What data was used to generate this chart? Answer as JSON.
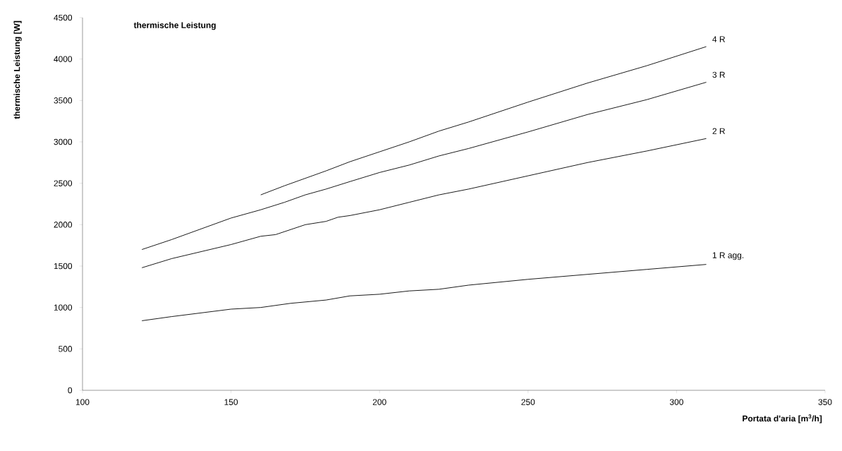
{
  "chart_data": {
    "type": "line",
    "title": "thermische Leistung",
    "xlabel": "Portata d'aria [m$^{3}$/h]",
    "ylabel": "thermische Leistung [W]",
    "xlim": [
      100,
      350
    ],
    "xticks": [
      100,
      150,
      200,
      250,
      300,
      350
    ],
    "ylim": [
      0,
      4500
    ],
    "yticks": [
      0,
      500,
      1000,
      1500,
      2000,
      2500,
      3000,
      3500,
      4000,
      4500
    ],
    "marker": "none",
    "line_style": "solid",
    "series": [
      {
        "name": "4 R",
        "color": "#000000",
        "x": [
          160,
          168,
          175,
          182,
          190,
          200,
          210,
          220,
          230,
          250,
          270,
          290,
          310
        ],
        "values": [
          2360,
          2470,
          2560,
          2650,
          2760,
          2880,
          3000,
          3130,
          3240,
          3480,
          3710,
          3920,
          4150
        ]
      },
      {
        "name": "3 R",
        "color": "#000000",
        "x": [
          120,
          130,
          150,
          160,
          168,
          175,
          182,
          190,
          200,
          210,
          220,
          230,
          250,
          270,
          290,
          310
        ],
        "values": [
          1700,
          1820,
          2080,
          2180,
          2270,
          2360,
          2430,
          2520,
          2630,
          2720,
          2830,
          2920,
          3120,
          3330,
          3510,
          3720
        ]
      },
      {
        "name": "2 R",
        "color": "#000000",
        "x": [
          120,
          130,
          150,
          160,
          165,
          175,
          182,
          186,
          190,
          200,
          210,
          220,
          230,
          250,
          270,
          290,
          310
        ],
        "values": [
          1480,
          1590,
          1760,
          1860,
          1880,
          2000,
          2040,
          2090,
          2110,
          2180,
          2270,
          2360,
          2430,
          2590,
          2750,
          2890,
          3040
        ]
      },
      {
        "name": "1 R agg.",
        "color": "#000000",
        "x": [
          120,
          130,
          150,
          160,
          170,
          182,
          190,
          200,
          210,
          220,
          230,
          250,
          270,
          290,
          310
        ],
        "values": [
          840,
          890,
          980,
          1000,
          1050,
          1090,
          1140,
          1160,
          1200,
          1220,
          1270,
          1340,
          1400,
          1460,
          1520
        ]
      }
    ]
  }
}
